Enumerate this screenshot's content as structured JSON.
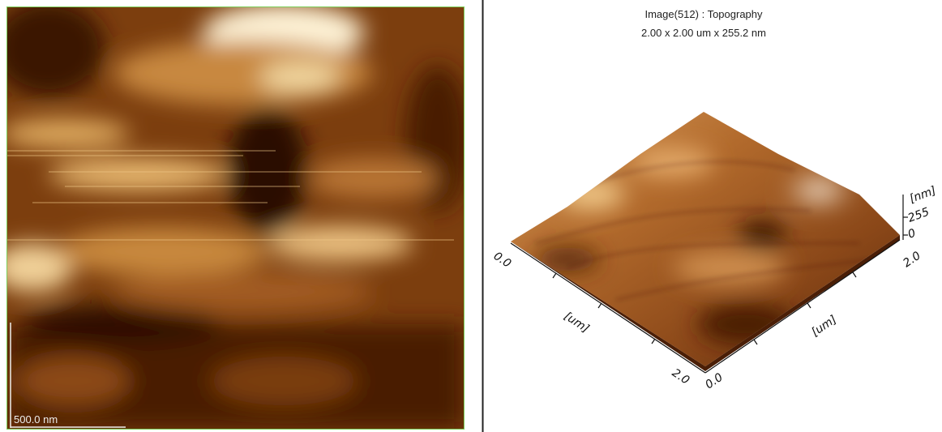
{
  "left_image": {
    "scale_bar": "500.0 nm"
  },
  "right_view": {
    "title": "Image(512) : Topography",
    "subtitle": "2.00 x 2.00 um x 255.2 nm",
    "x_axis": {
      "start": "0.0",
      "label": "[um]",
      "end": "2.0"
    },
    "y_axis": {
      "start": "0.0",
      "label": "[um]",
      "end": "2.0"
    },
    "z_axis": {
      "label": "[nm]",
      "top": "255",
      "bottom": "0"
    }
  }
}
